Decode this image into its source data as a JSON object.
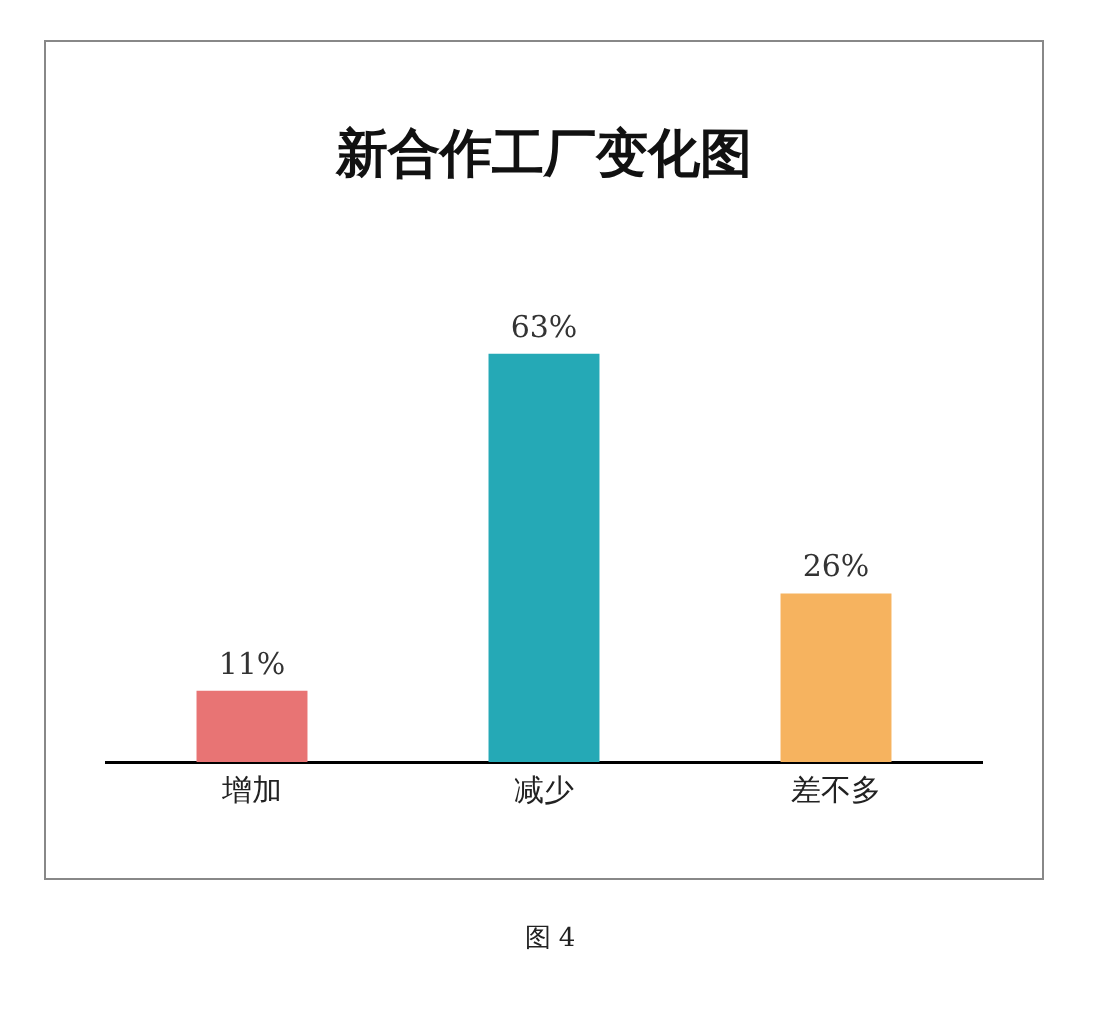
{
  "chart_data": {
    "type": "bar",
    "title": "新合作工厂变化图",
    "categories": [
      "增加",
      "减少",
      "差不多"
    ],
    "values": [
      11,
      63,
      26
    ],
    "colors": [
      "#e87474",
      "#25a9b6",
      "#f6b35f"
    ],
    "value_labels": [
      "11%",
      "63%",
      "26%"
    ],
    "grid": false,
    "legend": false,
    "annotations": [
      "图 4"
    ]
  }
}
